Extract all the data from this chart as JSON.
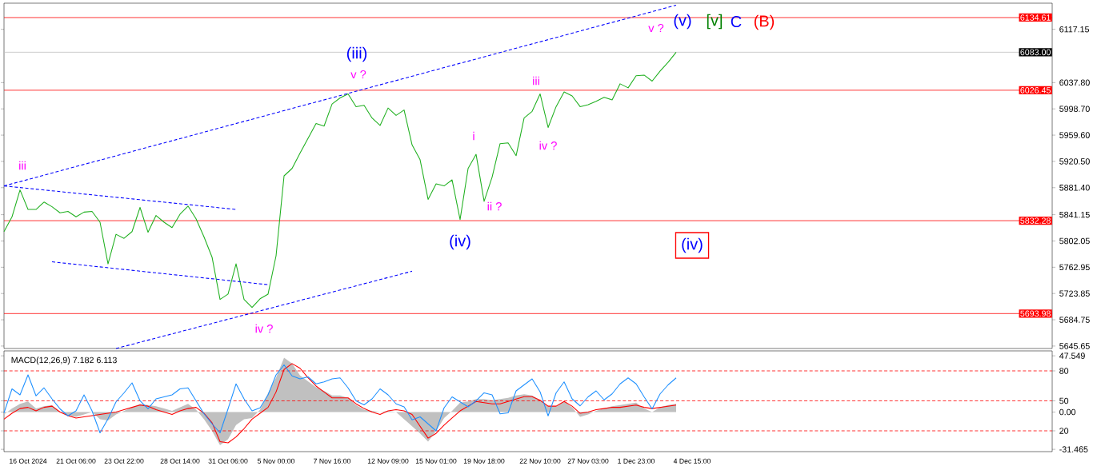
{
  "chart_data": [
    {
      "type": "line",
      "ylim": [
        5642,
        6156
      ],
      "tick_labels": "y",
      "categories": [
        null,
        null,
        null,
        null,
        null,
        null,
        null,
        null,
        null,
        null,
        null,
        null,
        null,
        null,
        null,
        null,
        null,
        null,
        null,
        null,
        null,
        null,
        null,
        null,
        null,
        null,
        null,
        null,
        null,
        null,
        null,
        null,
        null,
        null,
        null,
        null,
        null,
        null,
        null,
        null,
        null,
        null,
        null,
        null,
        null,
        null,
        null,
        null,
        null,
        null,
        null,
        null,
        null,
        null,
        null,
        null,
        null,
        null,
        null,
        null,
        null,
        null,
        null,
        null,
        null,
        null,
        null,
        null,
        null,
        null,
        null,
        null,
        null,
        null,
        null,
        null,
        null,
        null,
        null,
        null,
        null,
        null,
        null,
        null,
        null,
        null,
        null,
        null,
        null,
        null,
        null,
        null,
        null,
        null,
        null,
        null,
        null,
        null,
        null,
        null,
        null,
        null,
        null,
        null,
        null,
        null,
        null,
        null,
        null,
        null,
        null,
        null,
        null,
        null,
        null,
        null,
        null,
        null,
        null,
        null,
        null,
        null,
        null,
        null,
        null,
        null,
        null,
        null,
        null,
        null,
        null,
        null
      ],
      "yticks": [
        {
          "value": 5645.65,
          "label": "5645.65"
        },
        {
          "value": 5684.75,
          "label": "5684.75"
        },
        {
          "value": 5723.85,
          "label": "5723.85"
        },
        {
          "value": 5762.95,
          "label": "5762.95"
        },
        {
          "value": 5802.05,
          "label": "5802.05"
        },
        {
          "value": 5841.15,
          "label": "5841.15"
        },
        {
          "value": 5881.4,
          "label": "5881.40"
        },
        {
          "value": 5920.5,
          "label": "5920.50"
        },
        {
          "value": 5959.6,
          "label": "5959.60"
        },
        {
          "value": 5998.7,
          "label": "5998.70"
        },
        {
          "value": 6037.8,
          "label": "6037.80"
        },
        {
          "value": 6117.15,
          "label": "6117.15"
        }
      ],
      "series": [
        {
          "color": "#20b020",
          "values": [
            5816,
            5838,
            5878,
            5849,
            5849,
            5860,
            5853,
            5844,
            5846,
            5838,
            5845,
            5846,
            5830,
            5768,
            5812,
            5806,
            5816,
            5852,
            5815,
            5840,
            5830,
            5822,
            5842,
            5854,
            5835,
            5808,
            5778,
            5715,
            5723,
            5768,
            5715,
            5703,
            5716,
            5723,
            5780,
            5899,
            5910,
            5933,
            5955,
            5977,
            5973,
            6006,
            6015,
            6021,
            6002,
            6004,
            5985,
            5974,
            6000,
            5989,
            5997,
            5945,
            5923,
            5864,
            5887,
            5884,
            5893,
            5834,
            5910,
            5931,
            5861,
            5897,
            5947,
            5948,
            5929,
            5985,
            5995,
            6021,
            5971,
            6002,
            6024,
            6018,
            6002,
            6005,
            6010,
            6016,
            6012,
            6036,
            6030,
            6048,
            6049,
            6040,
            6055,
            6068,
            6083,
            null,
            null,
            null,
            null,
            null,
            null,
            null,
            null,
            null,
            null,
            null,
            null,
            null,
            null,
            null,
            null,
            null,
            null,
            null,
            null,
            null,
            null,
            null,
            null,
            null,
            null,
            null,
            null,
            null,
            null,
            null,
            null,
            null,
            null,
            null,
            null,
            null,
            null,
            null,
            null,
            null,
            null,
            null,
            null,
            null,
            null,
            null
          ]
        },
        {
          "color": "#0000ff",
          "line_style": "dashed",
          "values": [
            5884,
            null,
            null,
            null,
            null,
            null,
            null,
            null,
            null,
            null,
            null,
            null,
            null,
            null,
            null,
            null,
            null,
            null,
            null,
            null,
            null,
            null,
            null,
            null,
            null,
            null,
            null,
            null,
            null,
            null,
            null,
            null,
            null,
            null,
            null,
            null,
            null,
            null,
            null,
            null,
            null,
            null,
            null,
            null,
            null,
            null,
            null,
            null,
            null,
            null,
            null,
            null,
            null,
            null,
            null,
            null,
            null,
            null,
            null,
            null,
            null,
            null,
            null,
            null,
            null,
            null,
            null,
            null,
            null,
            null,
            null,
            null,
            null,
            null,
            null,
            null,
            null,
            null,
            null,
            null,
            null,
            null,
            null,
            null,
            6153,
            null,
            null,
            null,
            null,
            null,
            null,
            null,
            null,
            null,
            null,
            null,
            null,
            null,
            null,
            null,
            null,
            null,
            null,
            null,
            null,
            null,
            null,
            null,
            null,
            null,
            null,
            null,
            null,
            null,
            null,
            null,
            null,
            null,
            null,
            null,
            null,
            null,
            null,
            null,
            null,
            null,
            null,
            null,
            null,
            null,
            null,
            null
          ]
        },
        {
          "color": "#0000ff",
          "line_style": "dashed",
          "values": [
            null,
            null,
            null,
            null,
            null,
            null,
            null,
            null,
            null,
            null,
            null,
            null,
            null,
            null,
            5642,
            null,
            null,
            null,
            null,
            null,
            null,
            null,
            null,
            null,
            null,
            null,
            null,
            null,
            null,
            null,
            null,
            null,
            null,
            null,
            null,
            null,
            null,
            null,
            null,
            null,
            null,
            null,
            null,
            null,
            null,
            null,
            null,
            null,
            null,
            null,
            null,
            5757,
            null,
            null,
            null,
            null,
            null,
            null,
            null,
            null,
            null,
            null,
            null,
            null,
            null,
            null,
            null,
            null,
            null,
            null,
            null,
            null,
            null,
            null,
            null,
            null,
            null,
            null,
            null,
            null,
            null,
            null,
            null,
            null,
            null,
            null,
            null,
            null,
            null,
            null,
            null,
            null,
            null,
            null,
            null,
            null,
            null,
            null,
            null,
            null,
            null,
            null,
            null,
            null,
            null,
            null,
            null,
            null,
            null,
            null,
            null,
            null,
            null,
            null,
            null,
            null,
            null,
            null,
            null,
            null,
            null,
            null,
            null,
            null,
            null,
            null,
            null,
            null,
            null,
            null,
            null,
            null
          ]
        },
        {
          "color": "#0000ff",
          "line_style": "dashed",
          "values": [
            5884,
            null,
            null,
            null,
            null,
            null,
            null,
            null,
            null,
            null,
            null,
            null,
            null,
            null,
            null,
            null,
            null,
            null,
            null,
            null,
            null,
            null,
            null,
            null,
            null,
            null,
            null,
            null,
            null,
            5849,
            null,
            null,
            null,
            null,
            null,
            null,
            null,
            null,
            null,
            null,
            null,
            null,
            null,
            null,
            null,
            null,
            null,
            null,
            null,
            null,
            null,
            null,
            null,
            null,
            null,
            null,
            null,
            null,
            null,
            null,
            null,
            null,
            null,
            null,
            null,
            null,
            null,
            null,
            null,
            null,
            null,
            null,
            null,
            null,
            null,
            null,
            null,
            null,
            null,
            null,
            null,
            null,
            null,
            null,
            null,
            null,
            null,
            null,
            null,
            null,
            null,
            null,
            null,
            null,
            null,
            null,
            null,
            null,
            null,
            null,
            null,
            null,
            null,
            null,
            null,
            null,
            null,
            null,
            null,
            null,
            null,
            null,
            null,
            null,
            null,
            null,
            null,
            null,
            null,
            null,
            null,
            null,
            null,
            null,
            null,
            null,
            null,
            null,
            null,
            null,
            null,
            null
          ]
        },
        {
          "color": "#0000ff",
          "line_style": "dashed",
          "values": [
            null,
            null,
            null,
            null,
            null,
            null,
            5771,
            null,
            null,
            null,
            null,
            null,
            null,
            null,
            null,
            null,
            null,
            null,
            null,
            null,
            null,
            null,
            null,
            null,
            null,
            null,
            null,
            null,
            null,
            null,
            null,
            null,
            null,
            5737,
            null,
            null,
            null,
            null,
            null,
            null,
            null,
            null,
            null,
            null,
            null,
            null,
            null,
            null,
            null,
            null,
            null,
            null,
            null,
            null,
            null,
            null,
            null,
            null,
            null,
            null,
            null,
            null,
            null,
            null,
            null,
            null,
            null,
            null,
            null,
            null,
            null,
            null,
            null,
            null,
            null,
            null,
            null,
            null,
            null,
            null,
            null,
            null,
            null,
            null,
            null,
            null,
            null,
            null,
            null,
            null,
            null,
            null,
            null,
            null,
            null,
            null,
            null,
            null,
            null,
            null,
            null,
            null,
            null,
            null,
            null,
            null,
            null,
            null,
            null,
            null,
            null,
            null,
            null,
            null,
            null,
            null,
            null,
            null,
            null,
            null,
            null,
            null,
            null,
            null,
            null,
            null,
            null,
            null,
            null,
            null,
            null,
            null
          ]
        }
      ],
      "ref_lines": [
        {
          "axis": "y",
          "value": 6134.61,
          "label": "6134.61",
          "color": "#ff0000"
        },
        {
          "axis": "y",
          "value": 6083.0,
          "label": "6083.00",
          "color": "#c0c0c0"
        },
        {
          "axis": "y",
          "value": 6026.45,
          "label": "6026.45",
          "color": "#ff0000"
        },
        {
          "axis": "y",
          "value": 5832.28,
          "label": "5832.28",
          "color": "#ff0000"
        },
        {
          "axis": "y",
          "value": 5693.98,
          "label": "5693.98",
          "color": "#ff0000"
        }
      ],
      "annotations": [
        "iii",
        "(iii)",
        "v ?",
        "iv ?",
        "(iv)",
        "i",
        "ii ?",
        "iii",
        "iv ?",
        "v ?",
        "(v)",
        "[v]",
        "C",
        "(B)",
        "(iv)"
      ]
    },
    {
      "type": "line",
      "title": "MACD(12,26,9) 7.182 6.113",
      "ylim": [
        -33.4,
        51.7
      ],
      "y2lim": [
        -0.8,
        100
      ],
      "categories": [
        null,
        null,
        null,
        "16 Oct 2024",
        null,
        null,
        null,
        null,
        null,
        "21 Oct 06:00",
        null,
        null,
        null,
        null,
        null,
        "23 Oct 22:00",
        null,
        null,
        null,
        null,
        null,
        null,
        "28 Oct 14:00",
        null,
        null,
        null,
        null,
        null,
        "31 Oct 06:00",
        null,
        null,
        null,
        null,
        null,
        "5 Nov 00:00",
        null,
        null,
        null,
        null,
        null,
        null,
        "7 Nov 16:00",
        null,
        null,
        null,
        null,
        null,
        null,
        "12 Nov 09:00",
        null,
        null,
        null,
        null,
        null,
        "15 Nov 01:00",
        null,
        null,
        null,
        null,
        null,
        "19 Nov 18:00",
        null,
        null,
        null,
        null,
        null,
        null,
        "22 Nov 10:00",
        null,
        null,
        null,
        null,
        null,
        "27 Nov 03:00",
        null,
        null,
        null,
        null,
        null,
        "1 Dec 23:00",
        null,
        null,
        null,
        null,
        null,
        null,
        "4 Dec 15:00",
        null,
        null,
        null,
        null,
        null,
        null,
        null,
        null,
        null,
        null,
        null,
        null,
        null,
        null,
        null,
        null,
        null,
        null,
        null,
        null,
        null,
        null,
        null,
        null,
        null,
        null,
        null,
        null,
        null,
        null,
        null,
        null,
        null,
        null,
        null,
        null,
        null,
        null,
        null,
        null,
        null,
        null,
        null,
        null,
        null
      ],
      "yticks": [
        {
          "value": 47.549,
          "label": "47.549"
        },
        {
          "value": 0,
          "label": "0.00"
        },
        {
          "value": -31.465,
          "label": "-31.465"
        }
      ],
      "y2ticks": [
        80,
        50,
        20
      ],
      "series": [
        {
          "type": "area",
          "color": "#c0c0c0",
          "values": [
            -2,
            3,
            7,
            9,
            3,
            5,
            6,
            0,
            -3,
            -4,
            -2,
            0,
            -6,
            -7,
            -2,
            1,
            4,
            7,
            6,
            5,
            3,
            1,
            4,
            7,
            2,
            -6,
            -16,
            -28,
            -23,
            -11,
            -6,
            -5,
            2,
            16,
            29,
            46,
            41,
            31,
            26,
            21,
            18,
            14,
            14,
            12,
            6,
            2,
            1,
            0,
            1,
            0,
            -6,
            -12,
            -18,
            -25,
            -16,
            -5,
            1,
            8,
            9,
            11,
            11,
            10,
            11,
            12,
            14,
            15,
            14,
            10,
            5,
            5,
            9,
            4,
            -4,
            -2,
            1,
            3,
            5,
            6,
            7,
            8,
            3,
            0,
            4,
            6,
            7,
            null,
            null,
            null,
            null,
            null,
            null,
            null,
            null,
            null,
            null,
            null,
            null,
            null,
            null,
            null,
            null,
            null,
            null,
            null,
            null,
            null,
            null,
            null,
            null,
            null,
            null,
            null,
            null,
            null,
            null,
            null,
            null,
            null,
            null,
            null,
            null,
            null,
            null,
            null,
            null,
            null,
            null,
            null,
            null,
            null,
            null,
            null
          ]
        },
        {
          "type": "line",
          "color": "#ff0000",
          "values": [
            -6,
            -1,
            3,
            4,
            1,
            4,
            5,
            0,
            -3,
            -5,
            -4,
            -3,
            -2,
            -1,
            0,
            2,
            4,
            6,
            5,
            2,
            0,
            -2,
            1,
            3,
            4,
            -1,
            -9,
            -25,
            -26,
            -21,
            -14,
            -6,
            -1,
            4,
            17,
            36,
            41,
            37,
            29,
            22,
            17,
            12,
            12,
            12,
            7,
            3,
            0,
            -2,
            1,
            2,
            1,
            -2,
            -12,
            -22,
            -18,
            -11,
            -5,
            1,
            5,
            9,
            8,
            7,
            7,
            9,
            11,
            13,
            13,
            10,
            5,
            5,
            9,
            5,
            -1,
            0,
            2,
            3,
            4,
            4,
            5,
            6,
            4,
            3,
            4,
            5,
            6,
            null,
            null,
            null,
            null,
            null,
            null,
            null,
            null,
            null,
            null,
            null,
            null,
            null,
            null,
            null,
            null,
            null,
            null,
            null,
            null,
            null,
            null,
            null,
            null,
            null,
            null,
            null,
            null,
            null,
            null,
            null,
            null,
            null,
            null,
            null,
            null,
            null,
            null,
            null,
            null,
            null,
            null,
            null,
            null,
            null,
            null,
            null
          ]
        },
        {
          "type": "line",
          "axis": "y2",
          "color": "#1e90ff",
          "values": [
            38,
            62,
            56,
            76,
            55,
            63,
            52,
            42,
            35,
            40,
            56,
            40,
            18,
            32,
            49,
            58,
            68,
            50,
            42,
            52,
            54,
            56,
            62,
            63,
            50,
            37,
            27,
            18,
            42,
            67,
            52,
            40,
            43,
            56,
            76,
            86,
            75,
            72,
            74,
            67,
            69,
            72,
            73,
            63,
            50,
            46,
            52,
            62,
            56,
            47,
            44,
            31,
            34,
            27,
            20,
            43,
            54,
            49,
            44,
            50,
            58,
            56,
            37,
            38,
            60,
            66,
            72,
            59,
            35,
            58,
            69,
            52,
            45,
            54,
            60,
            51,
            57,
            67,
            73,
            67,
            54,
            42,
            57,
            66,
            73,
            null,
            null,
            null,
            null,
            null,
            null,
            null,
            null,
            null,
            null,
            null,
            null,
            null,
            null,
            null,
            null,
            null,
            null,
            null,
            null,
            null,
            null,
            null,
            null,
            null,
            null,
            null,
            null,
            null,
            null,
            null,
            null,
            null,
            null,
            null,
            null,
            null,
            null,
            null,
            null,
            null,
            null,
            null,
            null,
            null,
            null,
            null
          ]
        }
      ],
      "ref_lines": [
        {
          "axis": "y2",
          "value": 80,
          "color": "#ff0000",
          "line_style": "dashed"
        },
        {
          "axis": "y2",
          "value": 50,
          "color": "#ff0000",
          "line_style": "dashed"
        },
        {
          "axis": "y2",
          "value": 20,
          "color": "#ff0000",
          "line_style": "dashed"
        }
      ]
    }
  ]
}
